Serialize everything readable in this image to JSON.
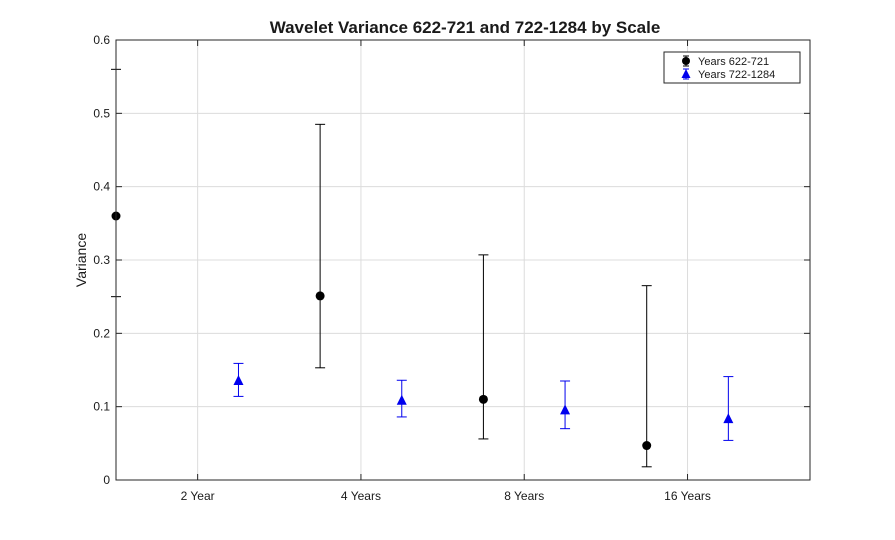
{
  "chart_data": {
    "type": "scatter",
    "title": "Wavelet Variance 622-721 and 722-1284 by Scale",
    "xlabel": "",
    "ylabel": "Variance",
    "ylim": [
      0,
      0.6
    ],
    "yticks": [
      "0",
      "0.1",
      "0.2",
      "0.3",
      "0.4",
      "0.5",
      "0.6"
    ],
    "xlim": [
      0.5,
      4.75
    ],
    "xticks": [
      {
        "value": 1,
        "label": "2 Year"
      },
      {
        "value": 2,
        "label": "4 Years"
      },
      {
        "value": 3,
        "label": "8 Years"
      },
      {
        "value": 4,
        "label": "16 Years"
      }
    ],
    "grid": true,
    "legend": "top-right",
    "series": [
      {
        "name": "Years 622-721",
        "marker": "circle",
        "color": "#000000",
        "points": [
          {
            "x": 0.5,
            "y": 0.36,
            "lower": 0.25,
            "upper": 0.56
          },
          {
            "x": 1.75,
            "y": 0.251,
            "lower": 0.153,
            "upper": 0.485
          },
          {
            "x": 2.75,
            "y": 0.11,
            "lower": 0.056,
            "upper": 0.307
          },
          {
            "x": 3.75,
            "y": 0.047,
            "lower": 0.018,
            "upper": 0.265
          }
        ]
      },
      {
        "name": "Years 722-1284",
        "marker": "triangle",
        "color": "#0000ee",
        "points": [
          {
            "x": 1.25,
            "y": 0.135,
            "lower": 0.114,
            "upper": 0.159
          },
          {
            "x": 2.25,
            "y": 0.108,
            "lower": 0.086,
            "upper": 0.136
          },
          {
            "x": 3.25,
            "y": 0.095,
            "lower": 0.07,
            "upper": 0.135
          },
          {
            "x": 4.25,
            "y": 0.083,
            "lower": 0.054,
            "upper": 0.141
          }
        ]
      }
    ]
  }
}
